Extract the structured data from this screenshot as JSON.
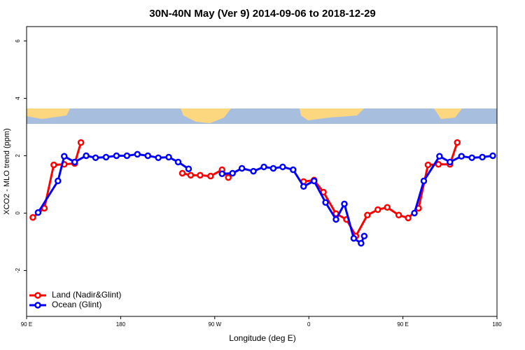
{
  "chart_data": {
    "type": "line",
    "title": "30N-40N May (Ver 9)   2014-09-06 to 2018-12-29",
    "x_label": "Longitude (deg E)",
    "y_label": "XCO2 - MLO trend (ppm)",
    "xlim": [
      90,
      540
    ],
    "ylim": [
      -3.6,
      6.5
    ],
    "xticks": [
      {
        "value": 90,
        "label": "90 E"
      },
      180,
      {
        "value": 270,
        "label": "90 W"
      },
      {
        "value": 360,
        "label": "0"
      },
      {
        "value": 450,
        "label": "90 E"
      },
      {
        "value": 540,
        "label": "180"
      }
    ],
    "yticks": [
      -2,
      0,
      2,
      4,
      6
    ],
    "legend": "bottom-left",
    "series": [
      {
        "name": "Land (Nadir&Glint)",
        "color": "#ff0000",
        "x": [
          96,
          107,
          116,
          126,
          136,
          142,
          null,
          239,
          247,
          256,
          266,
          277,
          283,
          null,
          355,
          365,
          374,
          386,
          396,
          405,
          416,
          426,
          435,
          446,
          455,
          465,
          474,
          484,
          495,
          502
        ],
        "values": [
          -0.15,
          0.17,
          1.68,
          1.7,
          1.73,
          2.46,
          null,
          1.39,
          1.32,
          1.32,
          1.29,
          1.51,
          1.24,
          null,
          1.1,
          1.15,
          0.73,
          -0.02,
          -0.22,
          -0.8,
          -0.07,
          0.12,
          0.2,
          -0.07,
          -0.17,
          0.17,
          1.68,
          1.7,
          1.7,
          2.46
        ]
      },
      {
        "name": "Ocean (Glint)",
        "color": "#0000ff",
        "x": [
          101,
          120,
          126,
          136,
          147,
          156,
          166,
          176,
          186,
          196,
          206,
          216,
          226,
          235,
          245,
          null,
          277,
          287,
          296,
          307,
          317,
          326,
          335,
          345,
          355,
          365,
          376,
          386,
          394,
          403,
          410,
          413,
          null,
          461,
          470,
          485,
          495,
          506,
          516,
          526,
          536
        ],
        "values": [
          0.02,
          1.12,
          1.98,
          1.78,
          2.0,
          1.93,
          1.95,
          2.0,
          2.0,
          2.05,
          2.0,
          1.93,
          1.95,
          1.78,
          1.54,
          null,
          1.37,
          1.39,
          1.56,
          1.46,
          1.61,
          1.56,
          1.61,
          1.51,
          0.93,
          1.12,
          0.37,
          -0.22,
          0.32,
          -0.88,
          -1.05,
          -0.8,
          null,
          0.0,
          1.12,
          1.98,
          1.78,
          1.98,
          1.93,
          1.95,
          2.0
        ]
      }
    ]
  }
}
